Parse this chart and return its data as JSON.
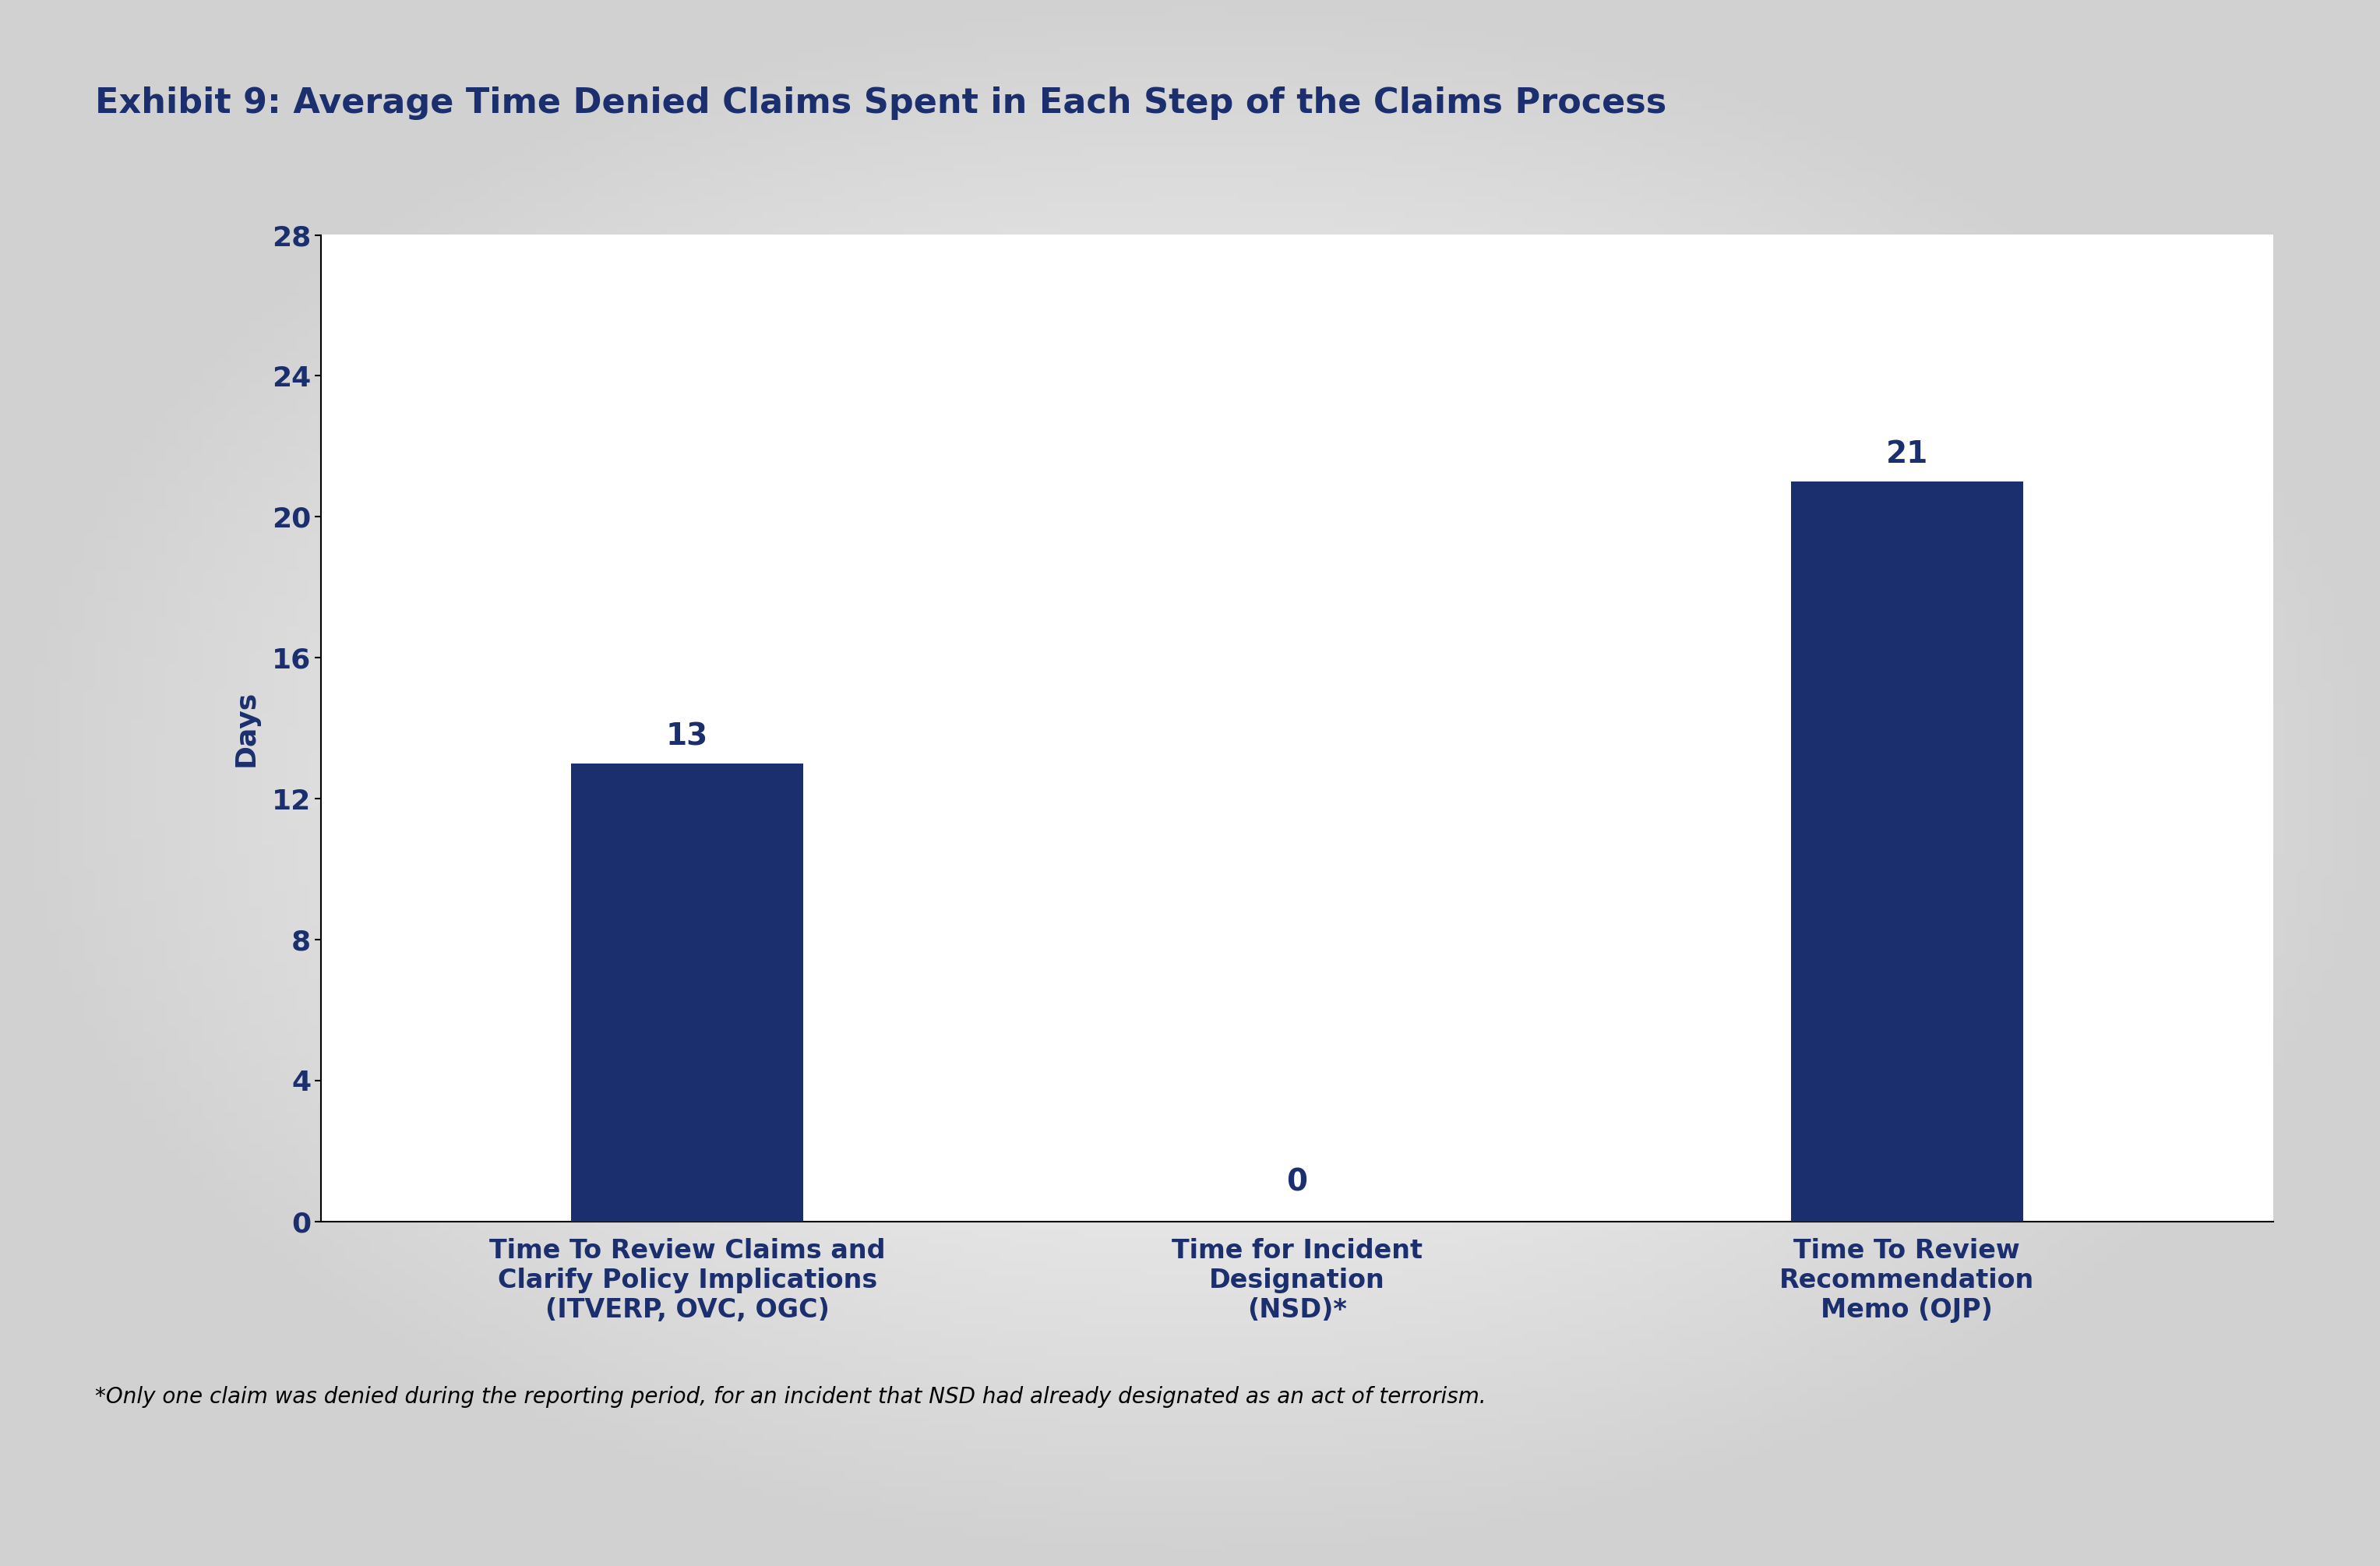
{
  "title": "Exhibit 9: Average Time Denied Claims Spent in Each Step of the Claims Process",
  "categories": [
    "Time To Review Claims and\nClarify Policy Implications\n(ITVERP, OVC, OGC)",
    "Time for Incident\nDesignation\n(NSD)*",
    "Time To Review\nRecommendation\nMemo (OJP)"
  ],
  "values": [
    13,
    0,
    21
  ],
  "bar_color": "#1b2f6e",
  "ylabel": "Days",
  "yticks": [
    0,
    4,
    8,
    12,
    16,
    20,
    24,
    28
  ],
  "ylim": [
    0,
    28
  ],
  "footnote": "*Only one claim was denied during the reporting period, for an incident that NSD had already designated as an act of terrorism.",
  "title_color": "#1b2f6e",
  "tick_color": "#1b2f6e",
  "label_color": "#1b2f6e",
  "title_fontsize": 32,
  "label_fontsize": 24,
  "tick_fontsize": 26,
  "ylabel_fontsize": 26,
  "footnote_fontsize": 20,
  "value_label_fontsize": 28
}
